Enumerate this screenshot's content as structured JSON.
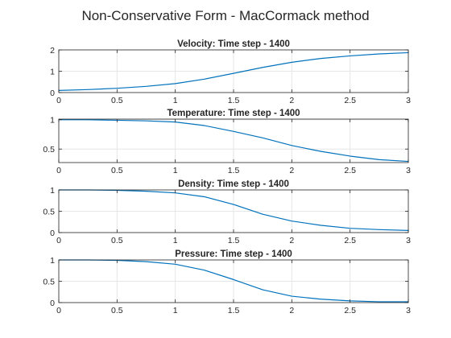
{
  "suptitle": "Non-Conservative Form - MacCormack method",
  "colors": {
    "line": "#0072BD",
    "grid": "#e6e6e6",
    "axis": "#262626",
    "background": "#ffffff"
  },
  "chart_data": [
    {
      "type": "line",
      "title": "Velocity: Time step - 1400",
      "xlabel": "",
      "ylabel": "",
      "xlim": [
        0,
        3
      ],
      "ylim": [
        0,
        2
      ],
      "xticks": [
        0,
        0.5,
        1,
        1.5,
        2,
        2.5,
        3
      ],
      "xtick_labels": [
        "0",
        "0.5",
        "1",
        "1.5",
        "2",
        "2.5",
        "3"
      ],
      "yticks": [
        0,
        1,
        2
      ],
      "ytick_labels": [
        "0",
        "1",
        "2"
      ],
      "grid": true,
      "series": [
        {
          "x": [
            0,
            0.25,
            0.5,
            0.75,
            1,
            1.25,
            1.5,
            1.75,
            2,
            2.25,
            2.5,
            2.75,
            3
          ],
          "y": [
            0.1,
            0.14,
            0.2,
            0.29,
            0.42,
            0.63,
            0.9,
            1.18,
            1.42,
            1.6,
            1.72,
            1.81,
            1.87
          ]
        }
      ]
    },
    {
      "type": "line",
      "title": "Temperature: Time step - 1400",
      "xlabel": "",
      "ylabel": "",
      "xlim": [
        0,
        3
      ],
      "ylim": [
        0.27,
        1.01
      ],
      "xticks": [
        0,
        0.5,
        1,
        1.5,
        2,
        2.5,
        3
      ],
      "xtick_labels": [
        "0",
        "0.5",
        "1",
        "1.5",
        "2",
        "2.5",
        "3"
      ],
      "yticks": [
        0.5,
        1
      ],
      "ytick_labels": [
        "0.5",
        "1"
      ],
      "grid": true,
      "series": [
        {
          "x": [
            0,
            0.25,
            0.5,
            0.75,
            1,
            1.25,
            1.5,
            1.75,
            2,
            2.25,
            2.5,
            2.75,
            3
          ],
          "y": [
            1.0,
            1.0,
            0.99,
            0.98,
            0.96,
            0.9,
            0.8,
            0.69,
            0.56,
            0.46,
            0.38,
            0.32,
            0.29
          ]
        }
      ]
    },
    {
      "type": "line",
      "title": "Density: Time step - 1400",
      "xlabel": "",
      "ylabel": "",
      "xlim": [
        0,
        3
      ],
      "ylim": [
        0,
        1
      ],
      "xticks": [
        0,
        0.5,
        1,
        1.5,
        2,
        2.5,
        3
      ],
      "xtick_labels": [
        "0",
        "0.5",
        "1",
        "1.5",
        "2",
        "2.5",
        "3"
      ],
      "yticks": [
        0,
        0.5,
        1
      ],
      "ytick_labels": [
        "0",
        "0.5",
        "1"
      ],
      "grid": true,
      "series": [
        {
          "x": [
            0,
            0.25,
            0.5,
            0.75,
            1,
            1.25,
            1.5,
            1.75,
            2,
            2.25,
            2.5,
            2.75,
            3
          ],
          "y": [
            1.0,
            1.0,
            0.99,
            0.97,
            0.93,
            0.84,
            0.66,
            0.43,
            0.27,
            0.17,
            0.1,
            0.07,
            0.05
          ]
        }
      ]
    },
    {
      "type": "line",
      "title": "Pressure: Time step - 1400",
      "xlabel": "",
      "ylabel": "",
      "xlim": [
        0,
        3
      ],
      "ylim": [
        0,
        1
      ],
      "xticks": [
        0,
        0.5,
        1,
        1.5,
        2,
        2.5,
        3
      ],
      "xtick_labels": [
        "0",
        "0.5",
        "1",
        "1.5",
        "2",
        "2.5",
        "3"
      ],
      "yticks": [
        0,
        0.5,
        1
      ],
      "ytick_labels": [
        "0",
        "0.5",
        "1"
      ],
      "grid": true,
      "series": [
        {
          "x": [
            0,
            0.25,
            0.5,
            0.75,
            1,
            1.25,
            1.5,
            1.75,
            2,
            2.25,
            2.5,
            2.75,
            3
          ],
          "y": [
            1.0,
            1.0,
            0.99,
            0.96,
            0.9,
            0.76,
            0.54,
            0.3,
            0.15,
            0.08,
            0.04,
            0.02,
            0.02
          ]
        }
      ]
    }
  ]
}
